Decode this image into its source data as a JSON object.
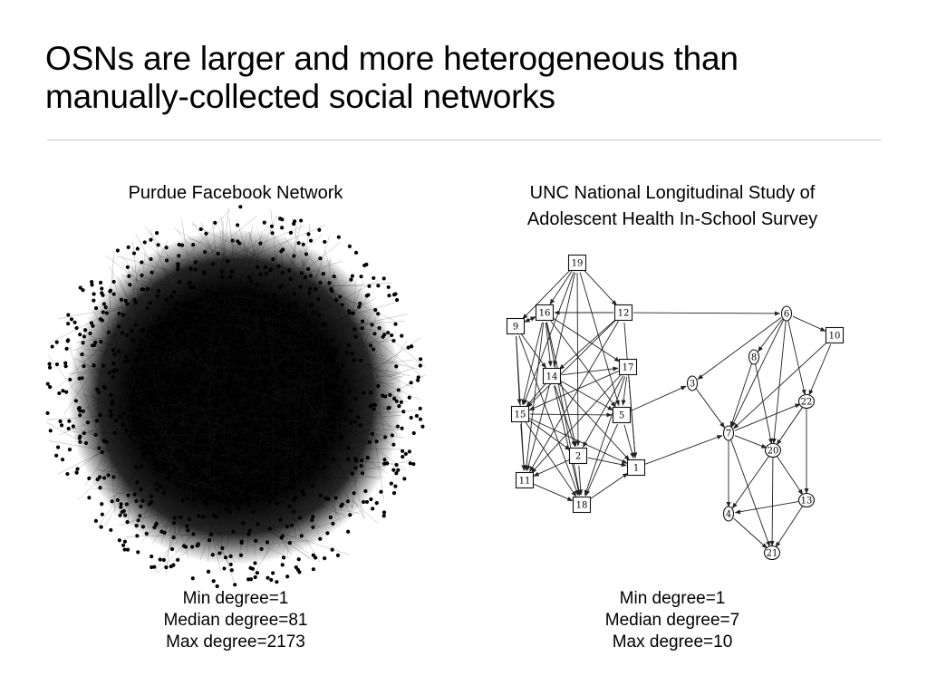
{
  "slide": {
    "title": "OSNs are larger and more heterogeneous than manually-collected social networks"
  },
  "left_panel": {
    "caption": "Purdue Facebook Network",
    "stats": [
      "Min degree=1",
      "Median degree=81",
      "Max degree=2173"
    ]
  },
  "right_panel": {
    "caption_lines": [
      "UNC National Longitudinal Study of",
      "Adolescent Health In-School Survey"
    ],
    "stats": [
      "Min degree=1",
      "Median degree=7",
      "Max degree=10"
    ],
    "nodes": [
      {
        "id": "19",
        "shape": "square"
      },
      {
        "id": "16",
        "shape": "square"
      },
      {
        "id": "12",
        "shape": "square"
      },
      {
        "id": "9",
        "shape": "square"
      },
      {
        "id": "14",
        "shape": "square"
      },
      {
        "id": "17",
        "shape": "square"
      },
      {
        "id": "15",
        "shape": "square"
      },
      {
        "id": "5",
        "shape": "square"
      },
      {
        "id": "2",
        "shape": "square"
      },
      {
        "id": "11",
        "shape": "square"
      },
      {
        "id": "18",
        "shape": "square"
      },
      {
        "id": "1",
        "shape": "square"
      },
      {
        "id": "10",
        "shape": "square"
      },
      {
        "id": "3",
        "shape": "circle"
      },
      {
        "id": "6",
        "shape": "circle"
      },
      {
        "id": "8",
        "shape": "circle"
      },
      {
        "id": "7",
        "shape": "circle"
      },
      {
        "id": "22",
        "shape": "circle"
      },
      {
        "id": "20",
        "shape": "circle"
      },
      {
        "id": "13",
        "shape": "circle"
      },
      {
        "id": "4",
        "shape": "circle"
      },
      {
        "id": "21",
        "shape": "circle"
      }
    ],
    "edges": [
      [
        "19",
        "16"
      ],
      [
        "19",
        "9"
      ],
      [
        "19",
        "14"
      ],
      [
        "19",
        "15"
      ],
      [
        "19",
        "12"
      ],
      [
        "19",
        "2"
      ],
      [
        "19",
        "5"
      ],
      [
        "16",
        "9"
      ],
      [
        "16",
        "14"
      ],
      [
        "16",
        "15"
      ],
      [
        "16",
        "11"
      ],
      [
        "16",
        "18"
      ],
      [
        "16",
        "2"
      ],
      [
        "16",
        "5"
      ],
      [
        "16",
        "17"
      ],
      [
        "12",
        "16"
      ],
      [
        "12",
        "14"
      ],
      [
        "12",
        "1"
      ],
      [
        "12",
        "6"
      ],
      [
        "12",
        "15"
      ],
      [
        "12",
        "11"
      ],
      [
        "9",
        "14"
      ],
      [
        "9",
        "15"
      ],
      [
        "9",
        "11"
      ],
      [
        "9",
        "16"
      ],
      [
        "9",
        "18"
      ],
      [
        "14",
        "15"
      ],
      [
        "14",
        "17"
      ],
      [
        "14",
        "5"
      ],
      [
        "14",
        "2"
      ],
      [
        "14",
        "18"
      ],
      [
        "14",
        "11"
      ],
      [
        "14",
        "1"
      ],
      [
        "17",
        "15"
      ],
      [
        "17",
        "5"
      ],
      [
        "17",
        "1"
      ],
      [
        "17",
        "2"
      ],
      [
        "17",
        "11"
      ],
      [
        "17",
        "18"
      ],
      [
        "15",
        "5"
      ],
      [
        "15",
        "11"
      ],
      [
        "15",
        "18"
      ],
      [
        "15",
        "2"
      ],
      [
        "15",
        "1"
      ],
      [
        "5",
        "18"
      ],
      [
        "5",
        "1"
      ],
      [
        "5",
        "3"
      ],
      [
        "2",
        "18"
      ],
      [
        "2",
        "11"
      ],
      [
        "2",
        "1"
      ],
      [
        "11",
        "18"
      ],
      [
        "18",
        "1"
      ],
      [
        "1",
        "7"
      ],
      [
        "3",
        "7"
      ],
      [
        "6",
        "8"
      ],
      [
        "6",
        "10"
      ],
      [
        "6",
        "7"
      ],
      [
        "6",
        "20"
      ],
      [
        "6",
        "22"
      ],
      [
        "6",
        "3"
      ],
      [
        "10",
        "22"
      ],
      [
        "10",
        "7"
      ],
      [
        "8",
        "7"
      ],
      [
        "8",
        "20"
      ],
      [
        "7",
        "22"
      ],
      [
        "7",
        "20"
      ],
      [
        "7",
        "4"
      ],
      [
        "7",
        "21"
      ],
      [
        "22",
        "20"
      ],
      [
        "22",
        "13"
      ],
      [
        "20",
        "13"
      ],
      [
        "20",
        "4"
      ],
      [
        "20",
        "21"
      ],
      [
        "13",
        "4"
      ],
      [
        "13",
        "21"
      ],
      [
        "4",
        "21"
      ]
    ]
  }
}
